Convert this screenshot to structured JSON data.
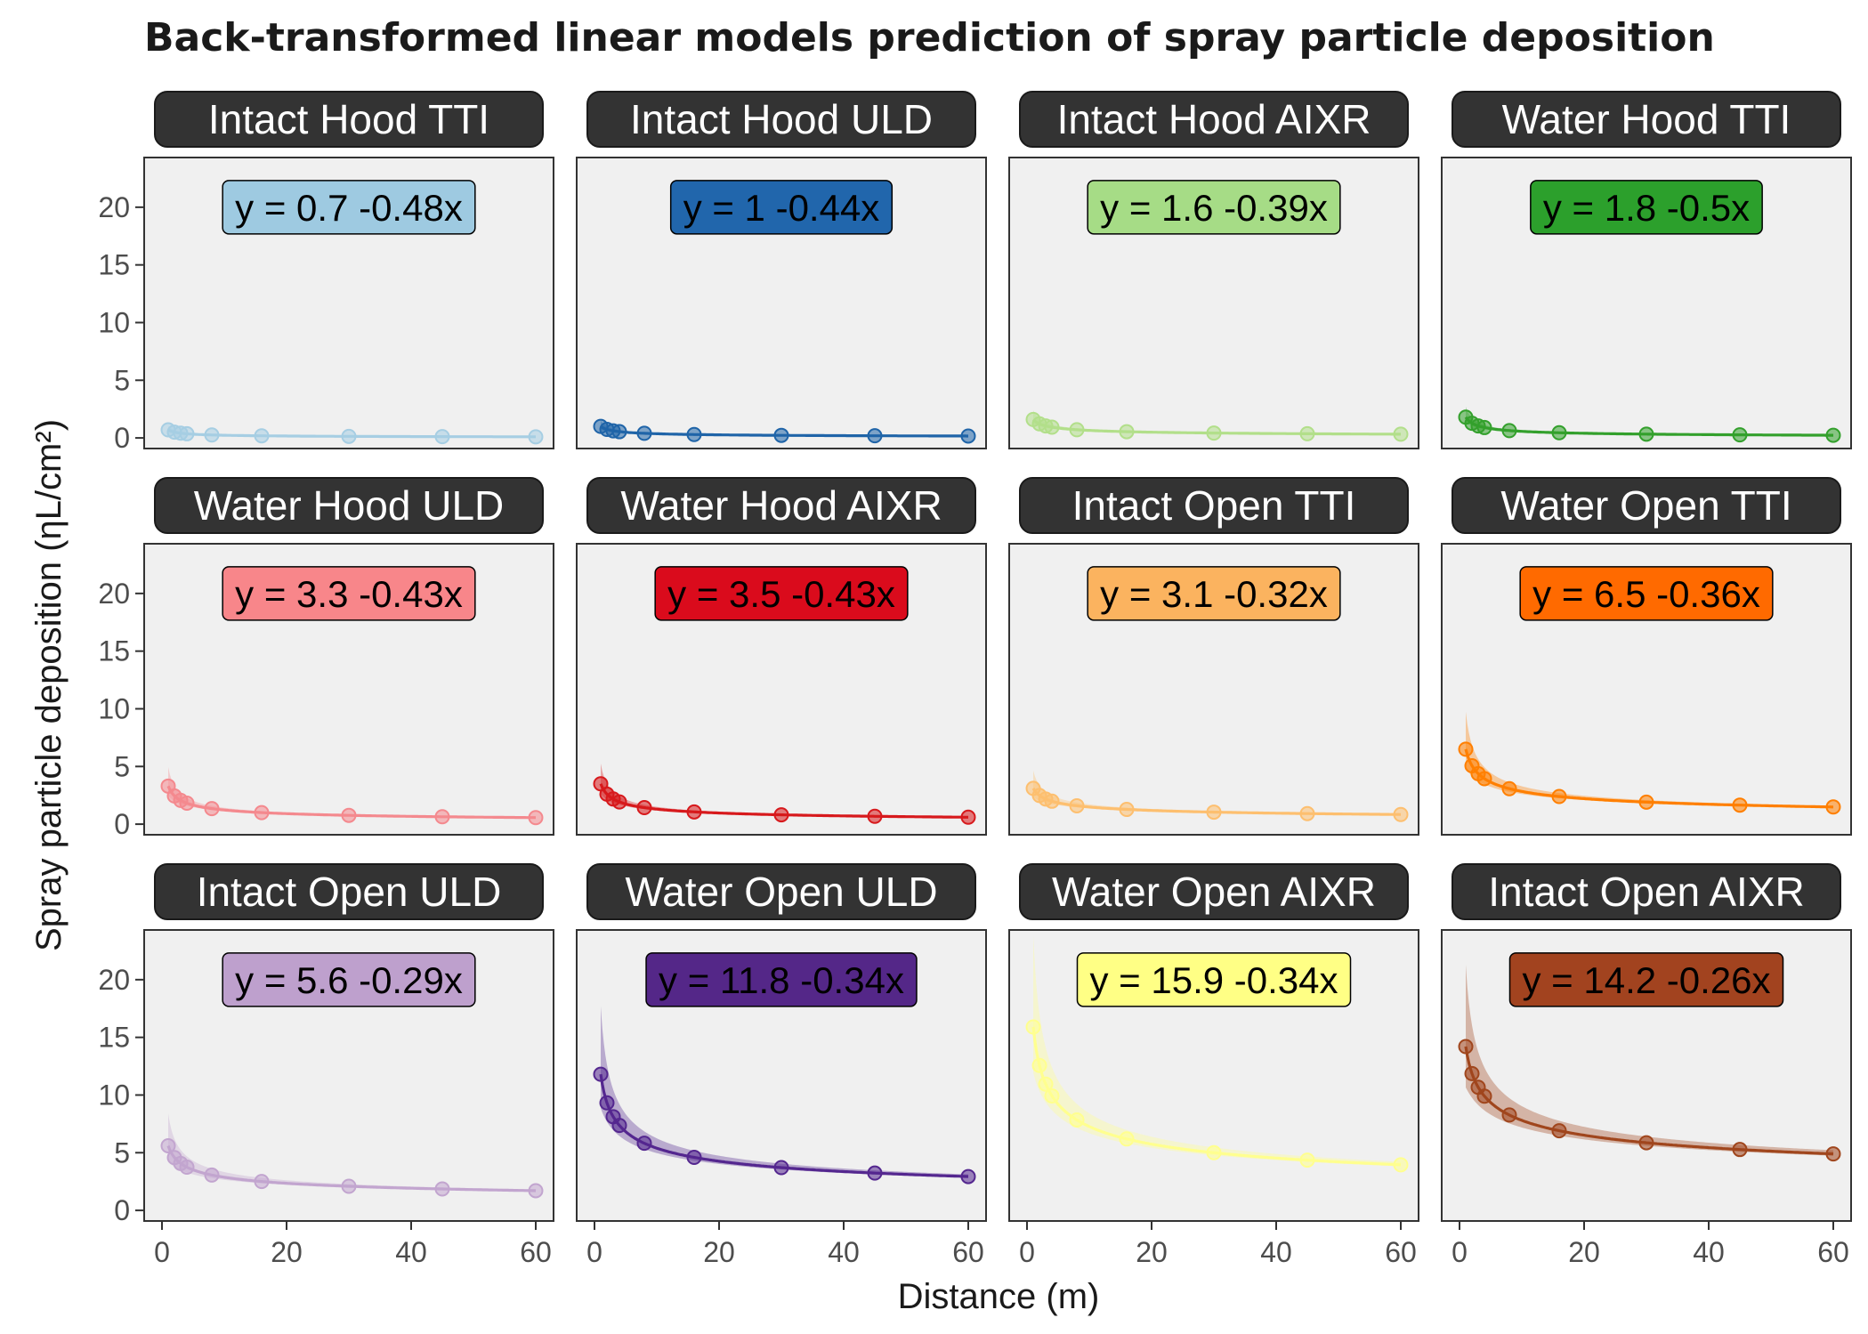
{
  "title": "Back-transformed linear models prediction of spray particle deposition",
  "xlabel": "Distance (m)",
  "ylabel": "Spray particle deposition (ηL/cm²)",
  "chart_data": {
    "type": "scatter",
    "title": "Back-transformed linear models prediction of spray particle deposition",
    "xlabel": "Distance (m)",
    "ylabel": "Spray particle deposition (ηL/cm²)",
    "xlim": [
      0,
      60
    ],
    "ylim": [
      0,
      24
    ],
    "x_ticks": [
      0,
      20,
      40,
      60
    ],
    "y_ticks": [
      0,
      5,
      10,
      15,
      20
    ],
    "facets": "3 rows × 4 columns, shared axes",
    "x": [
      1,
      2,
      3,
      4,
      8,
      16,
      30,
      45,
      60
    ],
    "series": [
      {
        "name": "Intact Hood TTI",
        "equation": "y =  0.7 -0.48x",
        "a": 0.7,
        "b": -0.48,
        "color": "#a6cee3",
        "eq_fill": "#9ecae1"
      },
      {
        "name": "Intact Hood ULD",
        "equation": "y =  1 -0.44x",
        "a": 1.0,
        "b": -0.44,
        "color": "#1f64a8",
        "eq_fill": "#2166ac"
      },
      {
        "name": "Intact Hood AIXR",
        "equation": "y =  1.6 -0.39x",
        "a": 1.6,
        "b": -0.39,
        "color": "#b2df8a",
        "eq_fill": "#a6dc86"
      },
      {
        "name": "Water Hood TTI",
        "equation": "y =  1.8 -0.5x",
        "a": 1.8,
        "b": -0.5,
        "color": "#33a02c",
        "eq_fill": "#2ca02c"
      },
      {
        "name": "Water Hood ULD",
        "equation": "y =  3.3 -0.43x",
        "a": 3.3,
        "b": -0.43,
        "color": "#f4898e",
        "eq_fill": "#f8868a"
      },
      {
        "name": "Water Hood AIXR",
        "equation": "y =  3.5 -0.43x",
        "a": 3.5,
        "b": -0.43,
        "color": "#d7191c",
        "eq_fill": "#da0b1c"
      },
      {
        "name": "Intact Open TTI",
        "equation": "y =  3.1 -0.32x",
        "a": 3.1,
        "b": -0.32,
        "color": "#fdbf6f",
        "eq_fill": "#fbb35f"
      },
      {
        "name": "Water Open TTI",
        "equation": "y =  6.5 -0.36x",
        "a": 6.5,
        "b": -0.36,
        "color": "#ff7f00",
        "eq_fill": "#ff6a00"
      },
      {
        "name": "Intact Open ULD",
        "equation": "y =  5.6 -0.29x",
        "a": 5.6,
        "b": -0.29,
        "color": "#c2a5cf",
        "eq_fill": "#bea0cd"
      },
      {
        "name": "Water Open ULD",
        "equation": "y =  11.8 -0.34x",
        "a": 11.8,
        "b": -0.34,
        "color": "#54278f",
        "eq_fill": "#542788"
      },
      {
        "name": "Water Open AIXR",
        "equation": "y =  15.9 -0.34x",
        "a": 15.9,
        "b": -0.34,
        "color": "#ffff8f",
        "eq_fill": "#ffff85"
      },
      {
        "name": "Intact Open AIXR",
        "equation": "y =  14.2 -0.26x",
        "a": 14.2,
        "b": -0.26,
        "color": "#a0461d",
        "eq_fill": "#a2431f"
      }
    ]
  }
}
